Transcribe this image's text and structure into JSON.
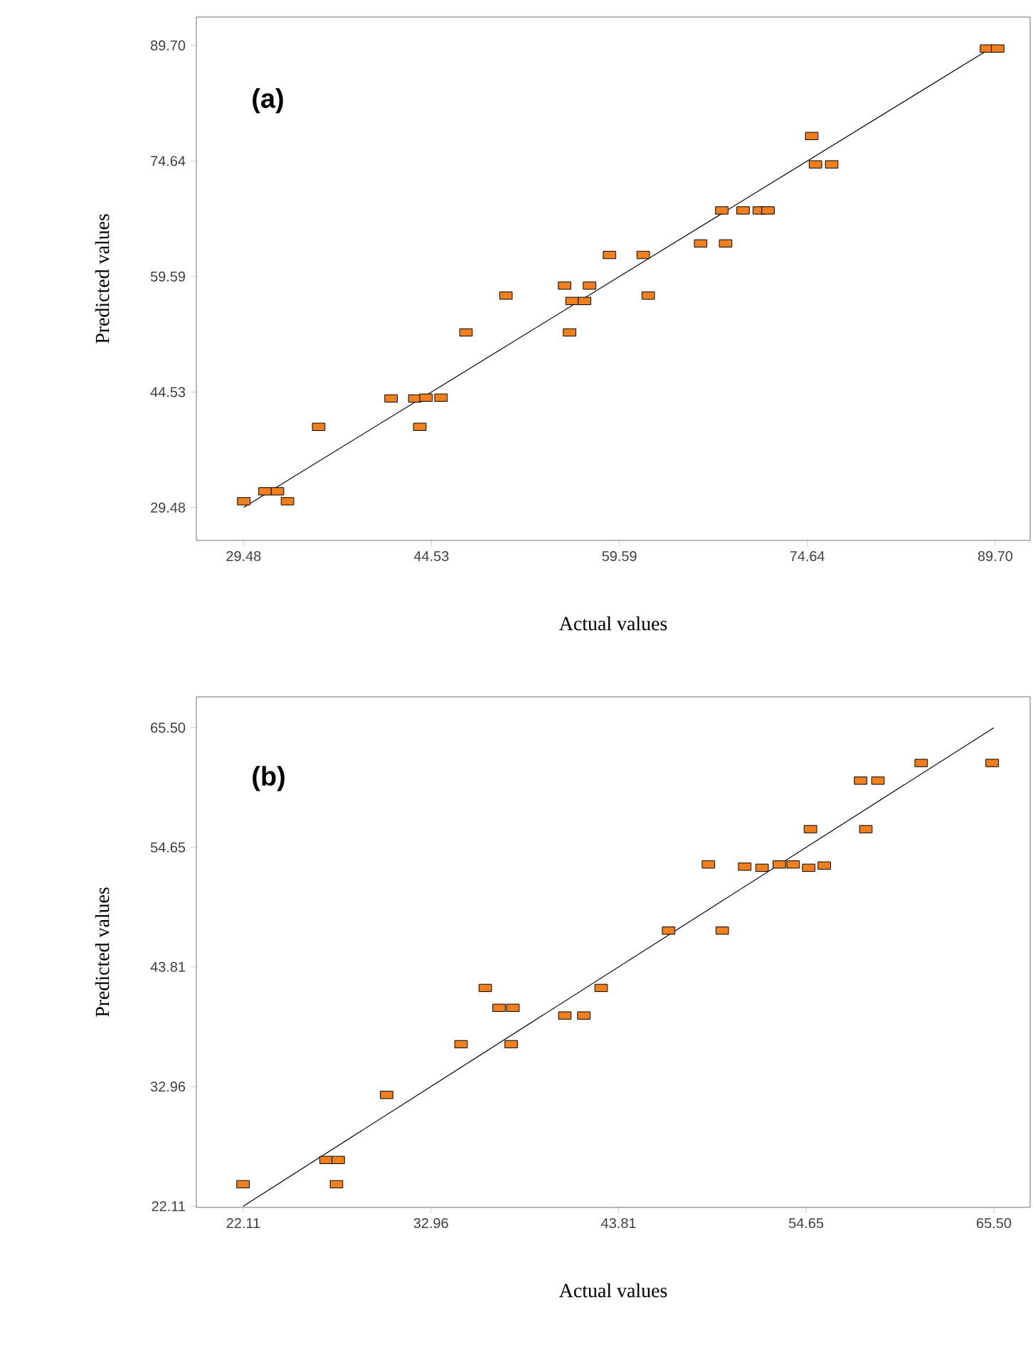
{
  "chart_data": [
    {
      "type": "scatter",
      "xlabel": "Actual values",
      "ylabel": "Predicted values",
      "annotations": [
        "(a)"
      ],
      "xlim": [
        25.7,
        92.5
      ],
      "ylim": [
        25.2,
        93.4
      ],
      "xticks": [
        29.48,
        44.53,
        59.59,
        74.64,
        {
          "value": 89.7,
          "label": "89.70"
        }
      ],
      "yticks": [
        29.48,
        44.53,
        59.59,
        74.64,
        {
          "value": 89.7,
          "label": "89.70"
        }
      ],
      "series": [
        {
          "marker": "square",
          "color": "#f07f1e",
          "x": [
            29.5,
            31.2,
            32.2,
            33.0,
            35.5,
            41.3,
            43.2,
            44.1,
            45.3,
            43.6,
            47.3,
            50.5,
            55.2,
            57.2,
            55.8,
            56.8,
            55.6,
            58.8,
            61.5,
            61.9,
            66.1,
            68.1,
            67.8,
            69.5,
            70.8,
            71.5,
            75.0,
            75.3,
            76.6,
            89.0,
            89.9
          ],
          "values": [
            30.3,
            31.6,
            31.6,
            30.3,
            40.0,
            43.7,
            43.7,
            43.8,
            43.8,
            40.0,
            52.3,
            57.1,
            58.4,
            58.4,
            56.4,
            56.4,
            52.3,
            62.4,
            62.4,
            57.1,
            63.9,
            63.9,
            68.2,
            68.2,
            68.2,
            68.2,
            77.9,
            74.2,
            74.2,
            89.3,
            89.3
          ]
        },
        {
          "type": "line",
          "color": "#000000",
          "x": [
            29.5,
            89.7
          ],
          "values": [
            29.5,
            89.7
          ]
        }
      ]
    },
    {
      "type": "scatter",
      "xlabel": "Actual values",
      "ylabel": "Predicted values",
      "annotations": [
        "(b)"
      ],
      "xlim": [
        19.4,
        67.6
      ],
      "ylim": [
        22.0,
        68.3
      ],
      "xticks": [
        22.11,
        32.96,
        43.81,
        54.65,
        {
          "value": 65.5,
          "label": "65.50"
        }
      ],
      "yticks": [
        22.11,
        32.96,
        43.81,
        54.65,
        {
          "value": 65.5,
          "label": "65.50"
        }
      ],
      "series": [
        {
          "marker": "square",
          "color": "#f07f1e",
          "x": [
            22.1,
            26.9,
            27.6,
            27.5,
            30.4,
            34.7,
            37.6,
            36.1,
            36.9,
            37.7,
            40.7,
            41.8,
            42.8,
            46.7,
            49.8,
            49.0,
            51.1,
            52.1,
            53.1,
            53.9,
            54.8,
            55.7,
            54.9,
            58.1,
            57.8,
            58.8,
            61.3,
            65.4
          ],
          "values": [
            24.1,
            26.3,
            26.3,
            24.1,
            32.2,
            36.8,
            36.8,
            41.9,
            40.1,
            40.1,
            39.4,
            39.4,
            41.9,
            47.1,
            47.1,
            53.1,
            52.9,
            52.8,
            53.1,
            53.1,
            52.8,
            53.0,
            56.3,
            56.3,
            60.7,
            60.7,
            62.3,
            62.3
          ]
        },
        {
          "type": "line",
          "color": "#000000",
          "x": [
            22.1,
            65.5
          ],
          "values": [
            22.1,
            65.5
          ]
        }
      ]
    }
  ]
}
